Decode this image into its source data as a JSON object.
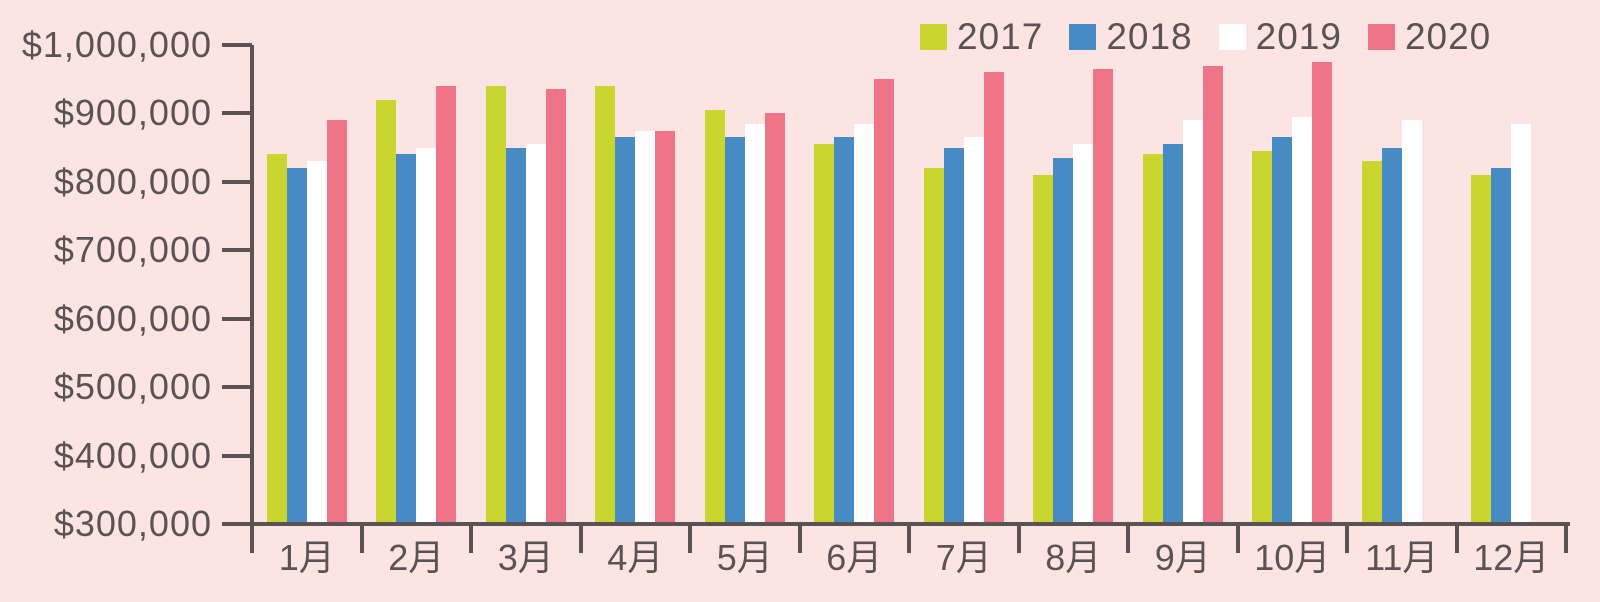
{
  "chart_data": {
    "type": "bar",
    "title": "",
    "xlabel": "",
    "ylabel": "",
    "categories": [
      "1月",
      "2月",
      "3月",
      "4月",
      "5月",
      "6月",
      "7月",
      "8月",
      "9月",
      "10月",
      "11月",
      "12月"
    ],
    "series": [
      {
        "name": "2017",
        "color": "#c9d62f",
        "values": [
          840000,
          920000,
          940000,
          940000,
          905000,
          855000,
          820000,
          810000,
          840000,
          845000,
          830000,
          810000
        ]
      },
      {
        "name": "2018",
        "color": "#478bc4",
        "values": [
          820000,
          840000,
          850000,
          865000,
          865000,
          865000,
          850000,
          835000,
          855000,
          865000,
          850000,
          820000
        ]
      },
      {
        "name": "2019",
        "color": "#ffffff",
        "values": [
          830000,
          850000,
          855000,
          875000,
          885000,
          885000,
          865000,
          855000,
          890000,
          895000,
          890000,
          885000
        ]
      },
      {
        "name": "2020",
        "color": "#ef7488",
        "values": [
          890000,
          940000,
          935000,
          875000,
          900000,
          950000,
          960000,
          965000,
          970000,
          975000,
          null,
          null
        ]
      }
    ],
    "ylim": [
      300000,
      1000000
    ],
    "ytick_step": 100000,
    "ytick_labels": [
      "$300,000",
      "$400,000",
      "$500,000",
      "$600,000",
      "$700,000",
      "$800,000",
      "$900,000",
      "$1,000,000"
    ],
    "legend_position": "top-right",
    "grid": false
  },
  "style": {
    "background": "#fce4e2",
    "axis_color": "#5a5354",
    "text_color": "#5a5354"
  }
}
